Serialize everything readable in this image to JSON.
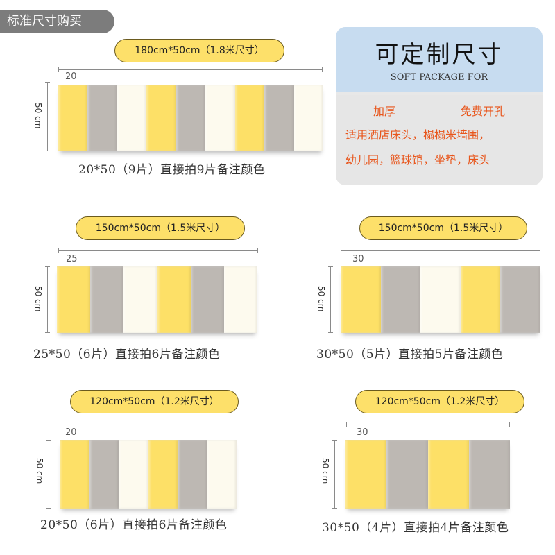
{
  "header_tag": "标准尺寸购买",
  "custom_box": {
    "title": "可定制尺寸",
    "subtitle": "SOFT PACKAGE FOR",
    "feature1": "加厚",
    "feature2": "免费开孔",
    "usage1": "适用酒店床头，榻榻米墙围，",
    "usage2": "幼儿园，篮球馆，坐垫，床头"
  },
  "colors": {
    "yellow": "#fde067",
    "gray": "#bdb8b3",
    "cream": "#fdfaee"
  },
  "variants": [
    {
      "label": "180cm*50cm（1.8米尺寸）",
      "width_label": "20",
      "height_label": "50 cm",
      "panels": [
        "yellow",
        "gray",
        "cream",
        "yellow",
        "gray",
        "cream",
        "yellow",
        "gray",
        "cream"
      ],
      "caption": "20*50（9片）直接拍9片备注颜色"
    },
    {
      "label": "150cm*50cm（1.5米尺寸）",
      "width_label": "25",
      "height_label": "50 cm",
      "panels": [
        "yellow",
        "gray",
        "cream",
        "yellow",
        "gray",
        "cream"
      ],
      "caption": "25*50（6片）直接拍6片备注颜色"
    },
    {
      "label": "150cm*50cm（1.5米尺寸）",
      "width_label": "30",
      "height_label": "50 cm",
      "panels": [
        "yellow",
        "gray",
        "cream",
        "yellow",
        "gray"
      ],
      "caption": "30*50（5片）直接拍5片备注颜色"
    },
    {
      "label": "120cm*50cm（1.2米尺寸）",
      "width_label": "20",
      "height_label": "50 cm",
      "panels": [
        "yellow",
        "gray",
        "cream",
        "yellow",
        "gray",
        "cream"
      ],
      "caption": "20*50（6片）直接拍6片备注颜色"
    },
    {
      "label": "120cm*50cm（1.2米尺寸）",
      "width_label": "30",
      "height_label": "50 cm",
      "panels": [
        "yellow",
        "gray",
        "yellow",
        "gray"
      ],
      "caption": "30*50（4片）直接拍4片备注颜色"
    }
  ]
}
